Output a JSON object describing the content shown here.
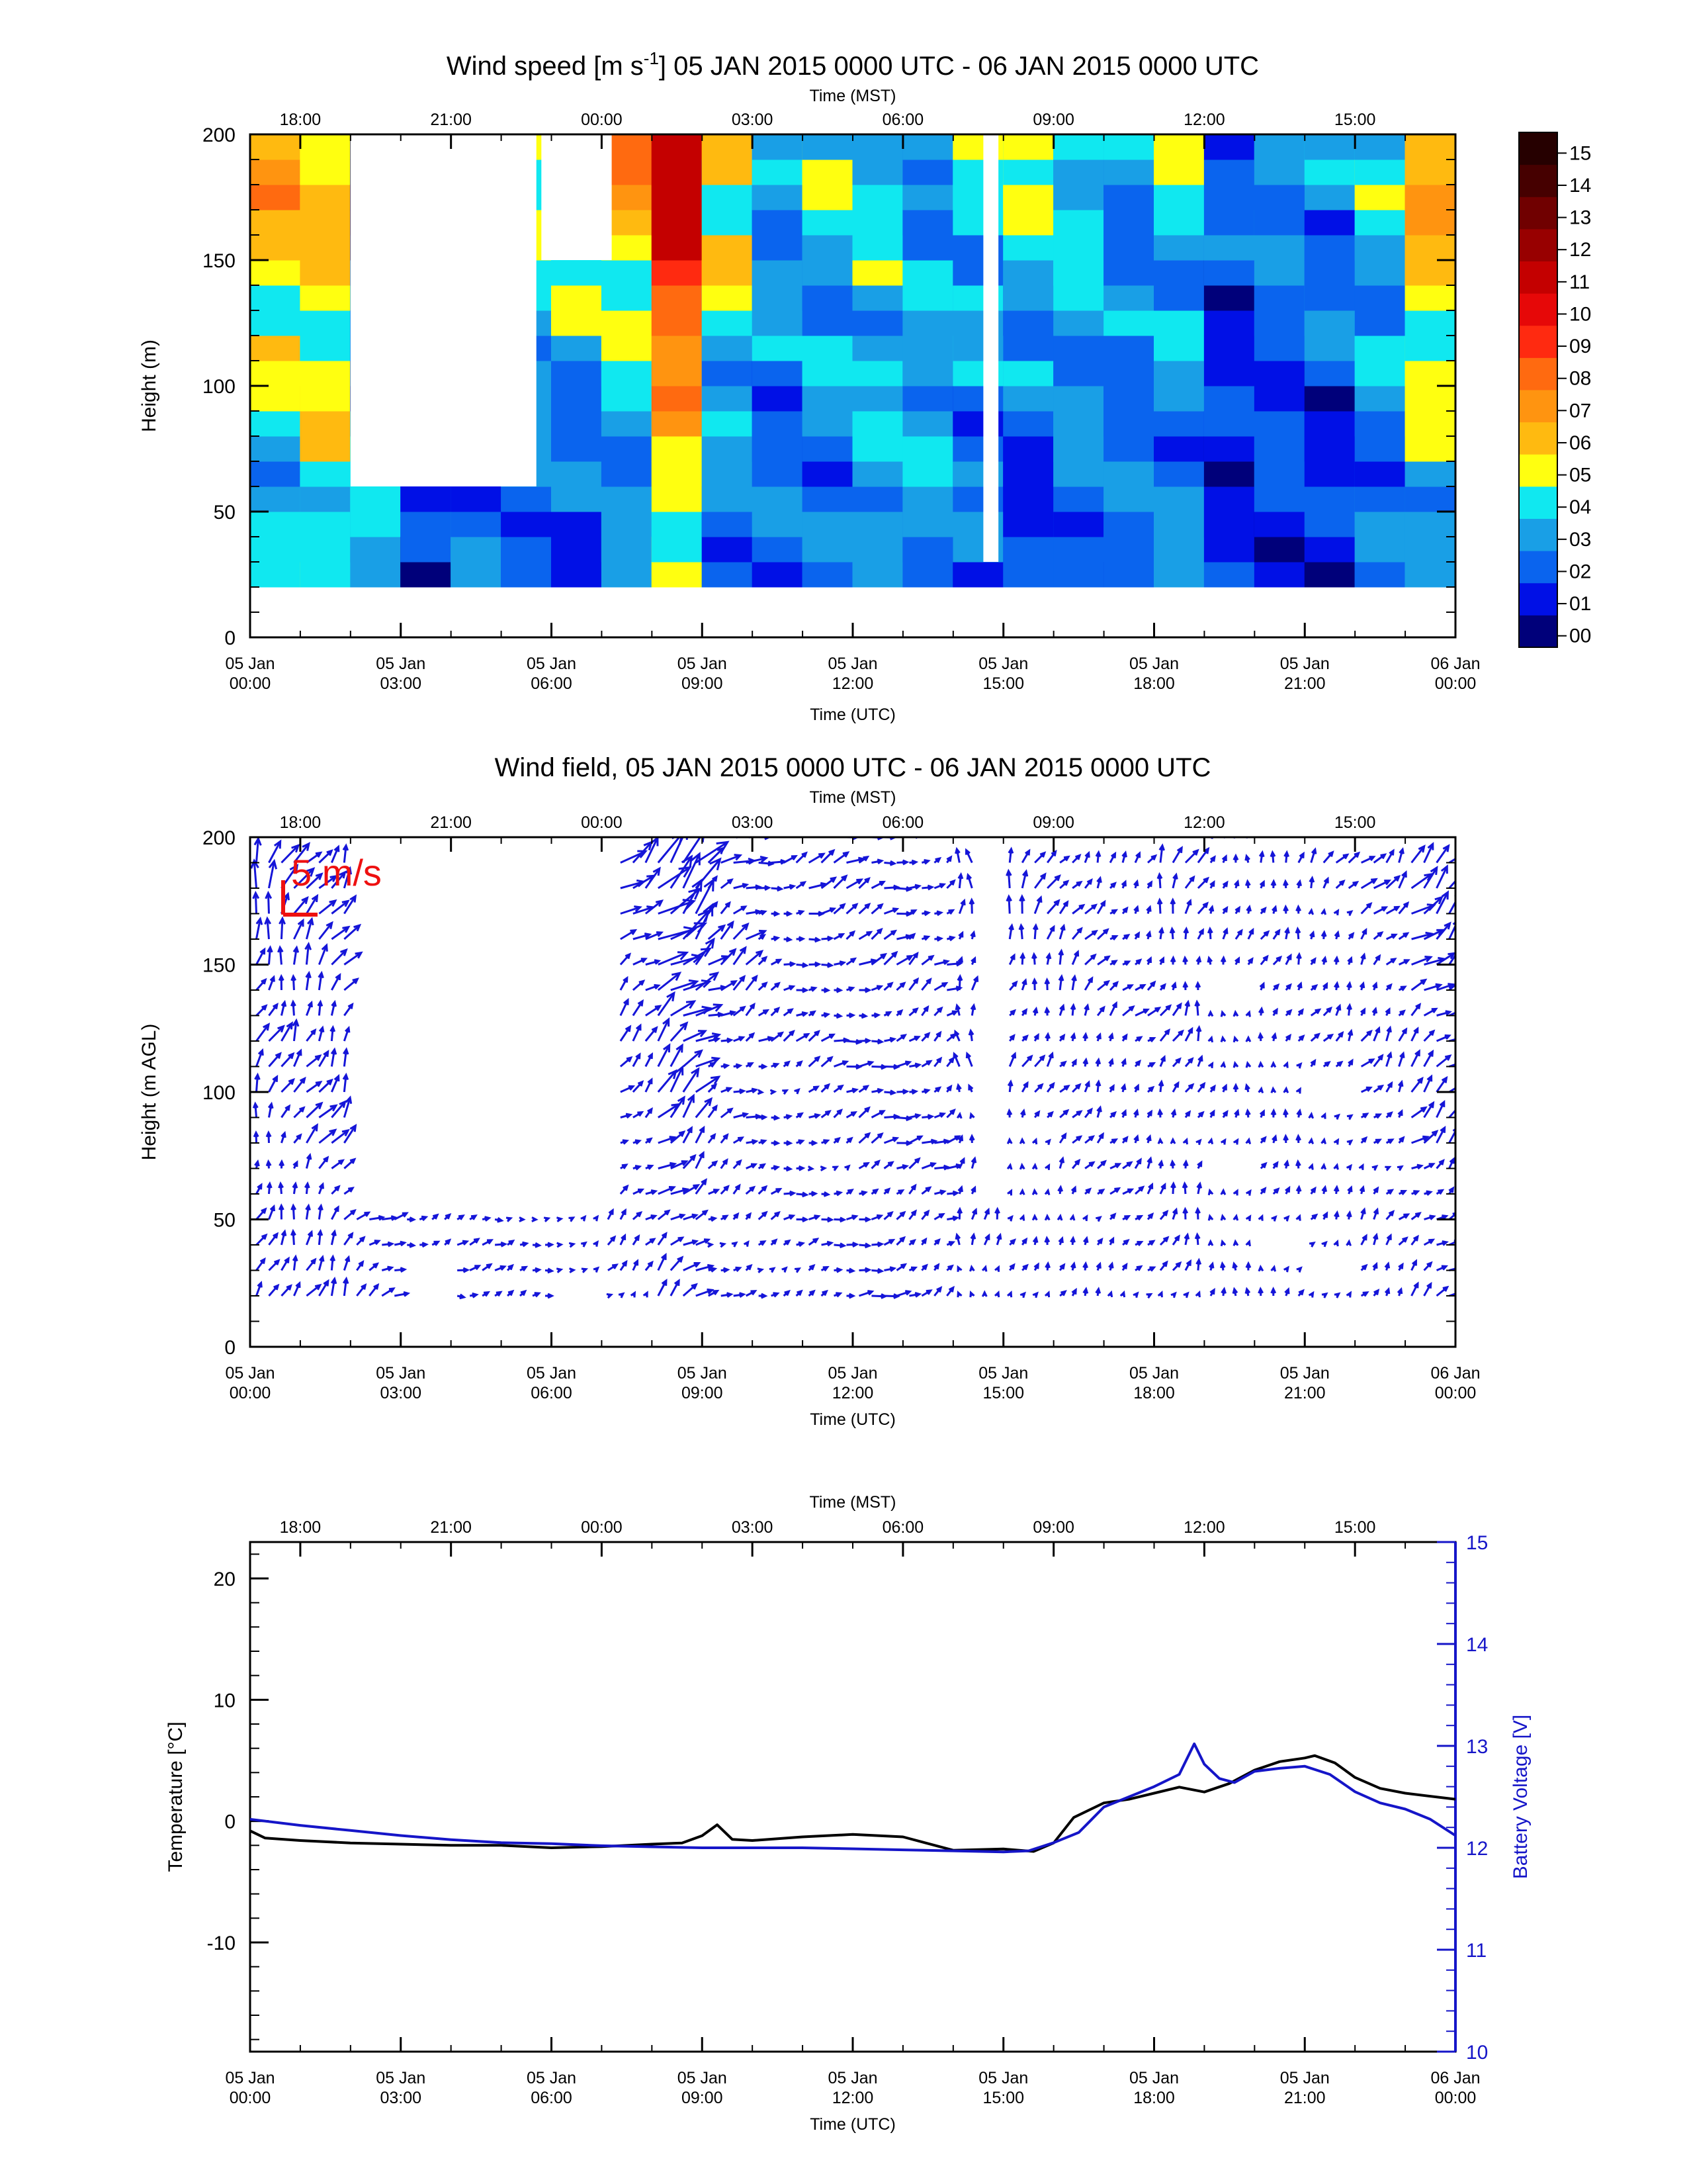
{
  "colors": {
    "wind_arrow": "#1515d8",
    "scale_arrow": "#ee1010",
    "temperature": "#000000",
    "battery": "#1515c8"
  },
  "panel1": {
    "title_prefix": "Wind speed [m s",
    "title_sup": "-1",
    "title_suffix": "] 05 JAN 2015 0000 UTC - 06 JAN 2015 0000 UTC",
    "top_axis_label": "Time (MST)",
    "bottom_axis_label": "Time (UTC)",
    "ylabel": "Height (m)"
  },
  "panel2": {
    "title": "Wind field, 05 JAN 2015 0000 UTC - 06 JAN 2015 0000 UTC",
    "top_axis_label": "Time (MST)",
    "bottom_axis_label": "Time (UTC)",
    "ylabel": "Height (m AGL)",
    "scale_label": "5 m/s"
  },
  "panel3": {
    "top_axis_label": "Time (MST)",
    "bottom_axis_label": "Time (UTC)",
    "ylabel_left": "Temperature [°C]",
    "ylabel_right": "Battery Voltage [V]"
  },
  "colorbar": {
    "labels": [
      "00",
      "01",
      "02",
      "03",
      "04",
      "05",
      "06",
      "07",
      "08",
      "09",
      "10",
      "11",
      "12",
      "13",
      "14",
      "15"
    ],
    "colors": [
      "#00007a",
      "#0010e6",
      "#0a64ee",
      "#199fe6",
      "#10e8f0",
      "#ffff10",
      "#ffba10",
      "#ff9410",
      "#ff6a10",
      "#ff2a10",
      "#e60808",
      "#c40000",
      "#980000",
      "#700000",
      "#460000",
      "#260000"
    ]
  },
  "chart_data": [
    {
      "type": "heatmap",
      "xlabel": "Time (UTC)",
      "ylabel": "Height (m)",
      "xlim_hours": [
        0,
        24
      ],
      "ylim": [
        0,
        200
      ],
      "x_ticks": [
        {
          "hour": 0,
          "l1": "05 Jan",
          "l2": "00:00"
        },
        {
          "hour": 3,
          "l1": "05 Jan",
          "l2": "03:00"
        },
        {
          "hour": 6,
          "l1": "05 Jan",
          "l2": "06:00"
        },
        {
          "hour": 9,
          "l1": "05 Jan",
          "l2": "09:00"
        },
        {
          "hour": 12,
          "l1": "05 Jan",
          "l2": "12:00"
        },
        {
          "hour": 15,
          "l1": "05 Jan",
          "l2": "15:00"
        },
        {
          "hour": 18,
          "l1": "05 Jan",
          "l2": "18:00"
        },
        {
          "hour": 21,
          "l1": "05 Jan",
          "l2": "21:00"
        },
        {
          "hour": 24,
          "l1": "06 Jan",
          "l2": "00:00"
        }
      ],
      "top_ticks": [
        {
          "hour": 1,
          "label": "18:00"
        },
        {
          "hour": 4,
          "label": "21:00"
        },
        {
          "hour": 7,
          "label": "00:00"
        },
        {
          "hour": 10,
          "label": "03:00"
        },
        {
          "hour": 13,
          "label": "06:00"
        },
        {
          "hour": 16,
          "label": "09:00"
        },
        {
          "hour": 19,
          "label": "12:00"
        },
        {
          "hour": 22,
          "label": "15:00"
        }
      ],
      "y_ticks": [
        0,
        50,
        100,
        150,
        200
      ],
      "heights": [
        20,
        30,
        40,
        50,
        60,
        70,
        80,
        90,
        100,
        110,
        120,
        130,
        140,
        150,
        160,
        170,
        180,
        190,
        200
      ],
      "profile_times": [
        0.5,
        1.5,
        2.5,
        3.5,
        4.5,
        5.5,
        6.5,
        7.5,
        8.5,
        9.5,
        10.5,
        11.5,
        12.5,
        13.5,
        14.5,
        15.5,
        16.5,
        17.5,
        18.5,
        19.5,
        20.5,
        21.5,
        22.5,
        23.5
      ],
      "low_level_speeds": [
        3,
        4,
        4,
        1,
        2,
        2,
        1,
        2,
        4,
        2,
        2,
        2,
        3,
        3,
        2,
        1,
        2,
        2,
        2,
        1,
        1,
        1,
        2,
        3
      ],
      "upper_level_speeds": [
        7,
        6,
        0,
        0,
        0,
        5,
        6,
        7,
        12,
        6,
        3,
        4,
        4,
        3,
        4,
        5,
        4,
        3,
        4,
        2,
        3,
        3,
        4,
        7
      ],
      "missing_blocks": [
        {
          "h0": 2.0,
          "h1": 5.7,
          "z0": 60,
          "z1": 200
        },
        {
          "h0": 5.8,
          "h1": 7.2,
          "z0": 150,
          "z1": 200
        },
        {
          "h0": 14.6,
          "h1": 14.9,
          "z0": 30,
          "z1": 200
        }
      ]
    },
    {
      "type": "scatter",
      "xlabel": "Time (UTC)",
      "ylabel": "Height (m AGL)",
      "xlim_hours": [
        0,
        24
      ],
      "ylim": [
        0,
        200
      ],
      "scale_vector_ms": 5,
      "profile_times": [
        0.5,
        1.5,
        2.5,
        3.5,
        4.5,
        5.5,
        6.5,
        7.5,
        8.5,
        9.5,
        10.5,
        11.5,
        12.5,
        13.5,
        14.5,
        15.5,
        16.5,
        17.5,
        18.5,
        19.5,
        20.5,
        21.5,
        22.5,
        23.5
      ],
      "direction_deg": [
        200,
        210,
        240,
        250,
        260,
        250,
        240,
        230,
        230,
        240,
        250,
        250,
        250,
        240,
        180,
        200,
        210,
        220,
        200,
        190,
        200,
        210,
        220,
        230
      ],
      "note_speeds_from": "panel 1 speeds"
    },
    {
      "type": "line",
      "xlabel": "Time (UTC)",
      "ylabel": "Temperature [°C]",
      "y2label": "Battery Voltage [V]",
      "xlim_hours": [
        0,
        24
      ],
      "ylim": [
        -19,
        23
      ],
      "y2lim": [
        10,
        15
      ],
      "y_ticks": [
        -10,
        0,
        10,
        20
      ],
      "y2_ticks": [
        10,
        11,
        12,
        13,
        14,
        15
      ],
      "series": [
        {
          "name": "Temperature",
          "axis": "left",
          "x": [
            0,
            0.3,
            1,
            2,
            3,
            4,
            5,
            6,
            7,
            8,
            8.6,
            9,
            9.3,
            9.6,
            10,
            11,
            12,
            13,
            14,
            15,
            15.6,
            16,
            16.4,
            17,
            17.5,
            18,
            18.5,
            19,
            19.5,
            20,
            20.5,
            21,
            21.2,
            21.6,
            22,
            22.5,
            23,
            24
          ],
          "y": [
            -0.8,
            -1.4,
            -1.6,
            -1.8,
            -1.9,
            -2.0,
            -2.0,
            -2.2,
            -2.1,
            -1.9,
            -1.8,
            -1.2,
            -0.3,
            -1.5,
            -1.6,
            -1.3,
            -1.1,
            -1.3,
            -2.4,
            -2.3,
            -2.5,
            -1.8,
            0.3,
            1.5,
            1.8,
            2.3,
            2.8,
            2.4,
            3.1,
            4.2,
            4.9,
            5.2,
            5.4,
            4.8,
            3.6,
            2.7,
            2.3,
            1.8
          ]
        },
        {
          "name": "Battery Voltage",
          "axis": "right",
          "x": [
            0,
            1,
            2,
            3,
            4,
            5,
            6,
            7,
            8,
            9,
            10,
            11,
            12,
            13,
            14,
            15,
            15.5,
            16,
            16.5,
            17,
            17.5,
            18,
            18.5,
            18.8,
            19,
            19.3,
            19.6,
            20,
            20.5,
            21,
            21.5,
            22,
            22.5,
            23,
            23.5,
            24
          ],
          "y": [
            12.28,
            12.22,
            12.17,
            12.12,
            12.08,
            12.05,
            12.04,
            12.02,
            12.01,
            12.0,
            12.0,
            12.0,
            11.99,
            11.98,
            11.97,
            11.96,
            11.97,
            12.05,
            12.15,
            12.4,
            12.5,
            12.6,
            12.72,
            13.02,
            12.82,
            12.68,
            12.64,
            12.75,
            12.78,
            12.8,
            12.72,
            12.55,
            12.44,
            12.38,
            12.28,
            12.12
          ]
        }
      ]
    }
  ]
}
